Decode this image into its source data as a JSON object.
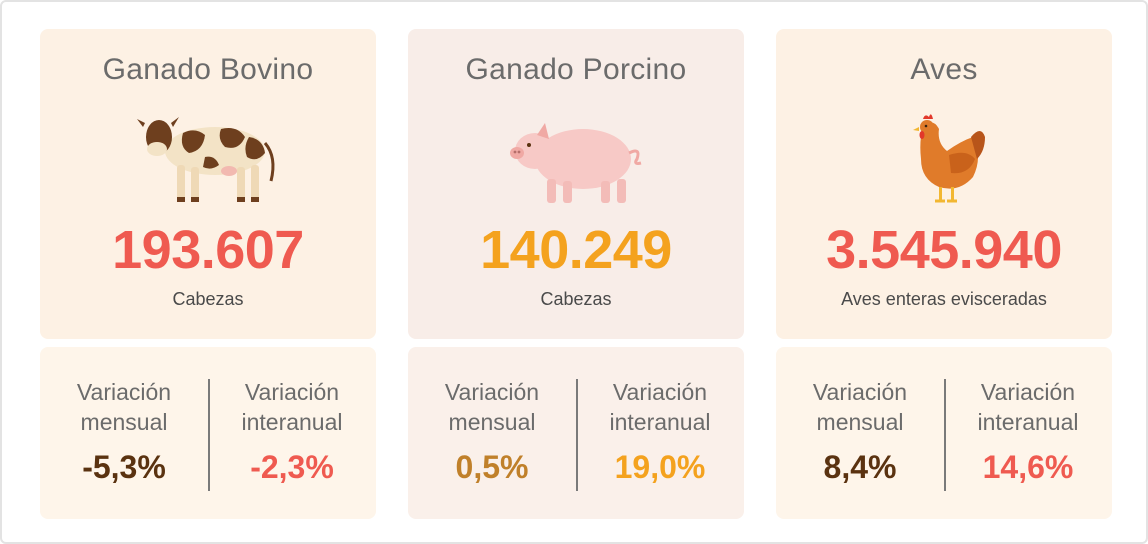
{
  "cards": [
    {
      "title": "Ganado Bovino",
      "icon": "cow-icon",
      "value": "193.607",
      "value_color": "#ef5a50",
      "unit": "Cabezas",
      "variation": {
        "monthly_label_1": "Variación",
        "monthly_label_2": "mensual",
        "monthly_value": "-5,3%",
        "monthly_color": "#5a3210",
        "annual_label_1": "Variación",
        "annual_label_2": "interanual",
        "annual_value": "-2,3%",
        "annual_color": "#ef5a50"
      }
    },
    {
      "title": "Ganado Porcino",
      "icon": "pig-icon",
      "value": "140.249",
      "value_color": "#f4a21e",
      "unit": "Cabezas",
      "variation": {
        "monthly_label_1": "Variación",
        "monthly_label_2": "mensual",
        "monthly_value": "0,5%",
        "monthly_color": "#c0802a",
        "annual_label_1": "Variación",
        "annual_label_2": "interanual",
        "annual_value": "19,0%",
        "annual_color": "#f4a21e"
      }
    },
    {
      "title": "Aves",
      "icon": "hen-icon",
      "value": "3.545.940",
      "value_color": "#ef5a50",
      "unit": "Aves enteras evisceradas",
      "variation": {
        "monthly_label_1": "Variación",
        "monthly_label_2": "mensual",
        "monthly_value": "8,4%",
        "monthly_color": "#5a3210",
        "annual_label_1": "Variación",
        "annual_label_2": "interanual",
        "annual_value": "14,6%",
        "annual_color": "#ef5a50"
      }
    }
  ]
}
